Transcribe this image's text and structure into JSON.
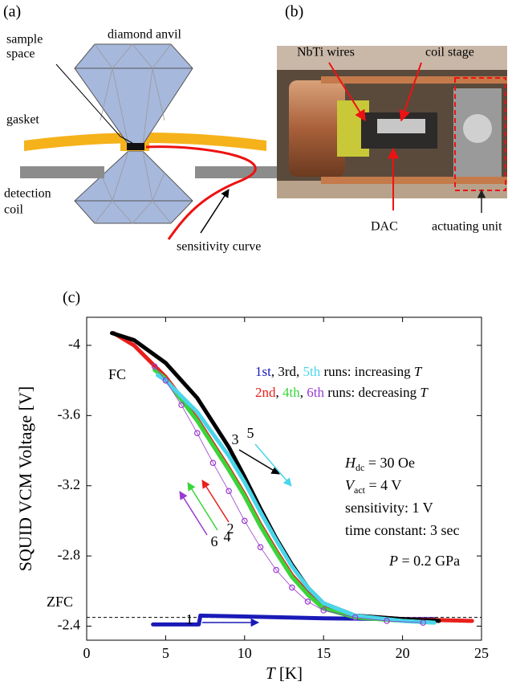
{
  "panel_a": {
    "label": "(a)",
    "diamond_anvil": "diamond anvil",
    "sample_space": [
      "sample",
      "space"
    ],
    "gasket": "gasket",
    "detection_coil": [
      "detection",
      "coil"
    ],
    "sensitivity_curve": "sensitivity curve"
  },
  "panel_b": {
    "label": "(b)",
    "nbti_wires": "NbTi wires",
    "coil_stage": "coil stage",
    "dac": "DAC",
    "actuating_unit": "actuating unit"
  },
  "chart_data": {
    "type": "line",
    "panel_label": "(c)",
    "x_label": {
      "symbol": "T",
      "unit": " [K]"
    },
    "y_label": "SQUID VCM Voltage [V]",
    "xlim": [
      0,
      25
    ],
    "ylim": [
      -2.32,
      -4.16
    ],
    "xticks": [
      0,
      5,
      10,
      15,
      20,
      25
    ],
    "yticks": [
      -4,
      -3.6,
      -3.2,
      -2.8,
      -2.4
    ],
    "reference_line": -2.45,
    "legend_separator": ", ",
    "legend": [
      {
        "text": " runs: increasing ",
        "symbol": "T"
      },
      {
        "text": " runs: decreasing ",
        "symbol": "T"
      }
    ],
    "series": [
      {
        "name": "1st",
        "color": "#1a1ab8",
        "marker": "line",
        "x": [
          4.2,
          7.1,
          7.2,
          10,
          15,
          20,
          22
        ],
        "values": [
          -2.41,
          -2.41,
          -2.46,
          -2.455,
          -2.445,
          -2.44,
          -2.44
        ]
      },
      {
        "name": "2nd",
        "color": "#e8201c",
        "marker": "line",
        "x": [
          1.7,
          3,
          5,
          7,
          9,
          10,
          11,
          12,
          13,
          14,
          15,
          17,
          20,
          24.4
        ],
        "values": [
          -4.07,
          -4.0,
          -3.82,
          -3.58,
          -3.3,
          -3.15,
          -2.98,
          -2.83,
          -2.69,
          -2.59,
          -2.51,
          -2.46,
          -2.44,
          -2.43
        ]
      },
      {
        "name": "3rd",
        "color": "#000000",
        "marker": "line",
        "x": [
          1.6,
          3,
          5,
          7,
          9,
          10,
          11,
          12,
          13,
          14,
          15,
          17,
          20,
          22.3
        ],
        "values": [
          -4.07,
          -4.03,
          -3.9,
          -3.7,
          -3.42,
          -3.25,
          -3.07,
          -2.9,
          -2.75,
          -2.62,
          -2.53,
          -2.46,
          -2.44,
          -2.43
        ]
      },
      {
        "name": "4th",
        "color": "#3ad43a",
        "marker": "line",
        "x": [
          4.3,
          5,
          7,
          9,
          10,
          11,
          12,
          13,
          14,
          15,
          17,
          20,
          22
        ],
        "values": [
          -3.86,
          -3.81,
          -3.57,
          -3.29,
          -3.14,
          -2.97,
          -2.82,
          -2.68,
          -2.58,
          -2.5,
          -2.45,
          -2.43,
          -2.42
        ]
      },
      {
        "name": "5th",
        "color": "#4ad6ea",
        "marker": "line",
        "x": [
          4.5,
          5,
          7,
          9,
          10,
          11,
          12,
          13,
          14,
          15,
          17,
          20,
          22
        ],
        "values": [
          -3.83,
          -3.8,
          -3.62,
          -3.37,
          -3.22,
          -3.05,
          -2.89,
          -2.74,
          -2.62,
          -2.53,
          -2.46,
          -2.43,
          -2.42
        ]
      },
      {
        "name": "6th",
        "color": "#9a3ad0",
        "marker": "open-circle",
        "x": [
          4.3,
          5,
          6,
          7,
          8,
          9,
          10,
          11,
          12,
          13,
          14,
          15,
          17,
          19,
          21.3
        ],
        "values": [
          -3.88,
          -3.8,
          -3.66,
          -3.5,
          -3.33,
          -3.17,
          -3.0,
          -2.85,
          -2.72,
          -2.62,
          -2.54,
          -2.49,
          -2.45,
          -2.43,
          -2.42
        ]
      }
    ],
    "annotations": {
      "fc": "FC",
      "zfc": "ZFC",
      "runs": [
        "1",
        "2",
        "3",
        "4",
        "5",
        "6"
      ],
      "conditions": [
        {
          "symbol": "H",
          "subscript": "dc",
          "text": " = 30 Oe"
        },
        {
          "symbol": "V",
          "subscript": "act",
          "text": " = 4 V"
        },
        {
          "text": "sensitivity: 1 V"
        },
        {
          "text": "time constant: 3 sec"
        }
      ],
      "pressure": {
        "symbol": "P",
        "text": " = 0.2 GPa"
      }
    }
  }
}
